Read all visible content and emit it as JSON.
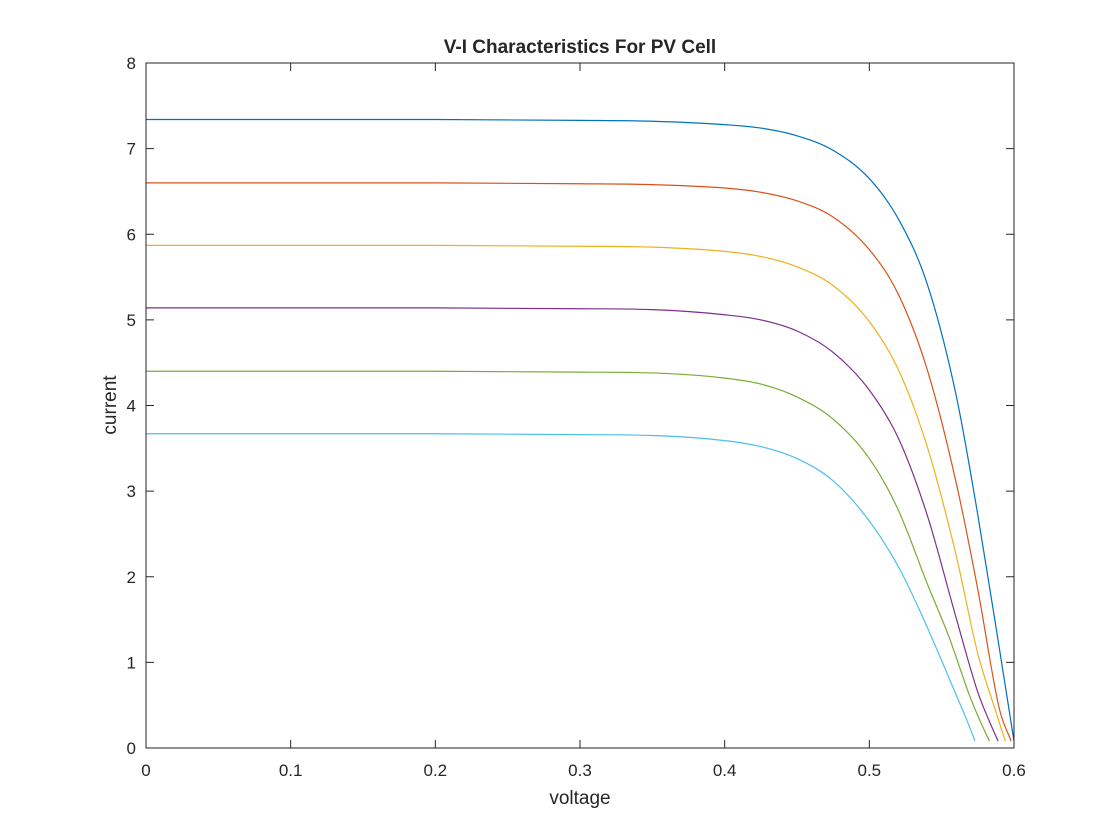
{
  "chart_data": {
    "type": "line",
    "title": "V-I Characteristics For PV Cell",
    "xlabel": "voltage",
    "ylabel": "current",
    "xlim": [
      0,
      0.6
    ],
    "ylim": [
      0,
      8
    ],
    "xticks": [
      "0",
      "0.1",
      "0.2",
      "0.3",
      "0.4",
      "0.5",
      "0.6"
    ],
    "yticks": [
      "0",
      "1",
      "2",
      "3",
      "4",
      "5",
      "6",
      "7",
      "8"
    ],
    "grid": false,
    "legend": "none",
    "series": [
      {
        "color": "#0072BD",
        "x": [
          0,
          0.1,
          0.2,
          0.3,
          0.35,
          0.4,
          0.425,
          0.45,
          0.475,
          0.5,
          0.52,
          0.54,
          0.56,
          0.575,
          0.59,
          0.6
        ],
        "y": [
          7.34,
          7.34,
          7.34,
          7.33,
          7.32,
          7.28,
          7.24,
          7.15,
          6.98,
          6.65,
          6.18,
          5.42,
          4.12,
          2.72,
          1.15,
          0.08
        ]
      },
      {
        "color": "#D95319",
        "x": [
          0,
          0.1,
          0.2,
          0.3,
          0.35,
          0.4,
          0.425,
          0.45,
          0.475,
          0.5,
          0.52,
          0.54,
          0.56,
          0.575,
          0.59,
          0.598
        ],
        "y": [
          6.6,
          6.6,
          6.6,
          6.59,
          6.58,
          6.54,
          6.49,
          6.39,
          6.2,
          5.82,
          5.3,
          4.42,
          3.1,
          1.85,
          0.45,
          0.08
        ]
      },
      {
        "color": "#EDB120",
        "x": [
          0,
          0.1,
          0.2,
          0.3,
          0.35,
          0.4,
          0.425,
          0.45,
          0.475,
          0.5,
          0.52,
          0.54,
          0.56,
          0.575,
          0.585,
          0.594
        ],
        "y": [
          5.87,
          5.87,
          5.87,
          5.86,
          5.85,
          5.8,
          5.74,
          5.62,
          5.4,
          4.98,
          4.42,
          3.52,
          2.25,
          1.1,
          0.55,
          0.08
        ]
      },
      {
        "color": "#7E2F8E",
        "x": [
          0,
          0.1,
          0.2,
          0.3,
          0.35,
          0.4,
          0.425,
          0.45,
          0.475,
          0.5,
          0.52,
          0.54,
          0.56,
          0.575,
          0.582,
          0.589
        ],
        "y": [
          5.14,
          5.14,
          5.14,
          5.13,
          5.12,
          5.06,
          5.0,
          4.87,
          4.62,
          4.18,
          3.62,
          2.72,
          1.52,
          0.65,
          0.35,
          0.08
        ]
      },
      {
        "color": "#77AC30",
        "x": [
          0,
          0.1,
          0.2,
          0.3,
          0.35,
          0.4,
          0.425,
          0.45,
          0.475,
          0.5,
          0.52,
          0.54,
          0.555,
          0.57,
          0.577,
          0.583
        ],
        "y": [
          4.4,
          4.4,
          4.4,
          4.39,
          4.38,
          4.32,
          4.25,
          4.1,
          3.84,
          3.38,
          2.78,
          1.92,
          1.3,
          0.58,
          0.3,
          0.08
        ]
      },
      {
        "color": "#4DBEEE",
        "x": [
          0,
          0.1,
          0.2,
          0.3,
          0.35,
          0.4,
          0.425,
          0.45,
          0.475,
          0.5,
          0.52,
          0.535,
          0.55,
          0.56,
          0.568,
          0.573
        ],
        "y": [
          3.67,
          3.67,
          3.67,
          3.66,
          3.65,
          3.59,
          3.52,
          3.38,
          3.12,
          2.65,
          2.12,
          1.6,
          1.02,
          0.62,
          0.3,
          0.08
        ]
      }
    ]
  }
}
